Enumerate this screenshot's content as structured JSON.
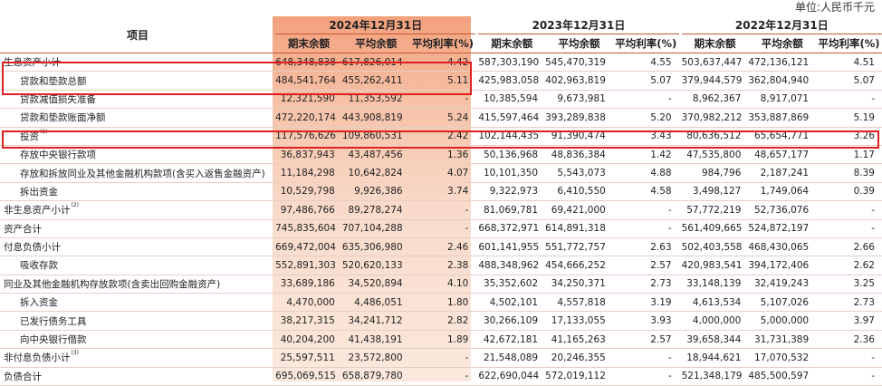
{
  "unit_note": "单位:人民币千元",
  "header": {
    "item_label": "项目",
    "years": [
      "2024年12月31日",
      "2023年12月31日",
      "2022年12月31日"
    ],
    "sub_columns": [
      "期末余额",
      "平均余额",
      "平均利率(%)"
    ]
  },
  "rows": [
    {
      "label": "生息资产小计",
      "sup": "",
      "v": [
        "648,348,838",
        "617,826,014",
        "4.42",
        "587,303,190",
        "545,470,319",
        "4.55",
        "503,637,447",
        "472,136,121",
        "4.51"
      ]
    },
    {
      "label": "贷款和垫款总额",
      "sup": "",
      "v": [
        "484,541,764",
        "455,262,411",
        "5.11",
        "425,983,058",
        "402,963,819",
        "5.07",
        "379,944,579",
        "362,804,940",
        "5.07"
      ]
    },
    {
      "label": "贷款减值损失准备",
      "sup": "",
      "v": [
        "12,321,590",
        "11,353,592",
        "-",
        "10,385,594",
        "9,673,981",
        "-",
        "8,962,367",
        "8,917,071",
        "-"
      ]
    },
    {
      "label": "贷款和垫款账面净额",
      "sup": "",
      "v": [
        "472,220,174",
        "443,908,819",
        "5.24",
        "415,597,464",
        "393,289,838",
        "5.20",
        "370,982,212",
        "353,887,869",
        "5.19"
      ]
    },
    {
      "label": "投资",
      "sup": "(1)",
      "v": [
        "117,576,626",
        "109,860,531",
        "2.42",
        "102,144,435",
        "91,390,474",
        "3.43",
        "80,636,512",
        "65,654,771",
        "3.26"
      ]
    },
    {
      "label": "存放中央银行款项",
      "sup": "",
      "v": [
        "36,837,943",
        "43,487,456",
        "1.36",
        "50,136,968",
        "48,836,384",
        "1.42",
        "47,535,800",
        "48,657,177",
        "1.17"
      ]
    },
    {
      "label": "存放和拆放同业及其他金融机构款项(含买入返售金融资产)",
      "sup": "",
      "v": [
        "11,184,298",
        "10,642,824",
        "4.07",
        "10,101,350",
        "5,543,073",
        "4.88",
        "984,796",
        "2,187,241",
        "8.39"
      ]
    },
    {
      "label": "拆出资金",
      "sup": "",
      "v": [
        "10,529,798",
        "9,926,386",
        "3.74",
        "9,322,973",
        "6,410,550",
        "4.58",
        "3,498,127",
        "1,749,064",
        "0.39"
      ]
    },
    {
      "label": "非生息资产小计",
      "sup": "(2)",
      "v": [
        "97,486,766",
        "89,278,274",
        "-",
        "81,069,781",
        "69,421,000",
        "-",
        "57,772,219",
        "52,736,076",
        "-"
      ]
    },
    {
      "label": "资产合计",
      "sup": "",
      "v": [
        "745,835,604",
        "707,104,288",
        "-",
        "668,372,971",
        "614,891,318",
        "-",
        "561,409,665",
        "524,872,197",
        "-"
      ]
    },
    {
      "label": "付息负债小计",
      "sup": "",
      "v": [
        "669,472,004",
        "635,306,980",
        "2.46",
        "601,141,955",
        "551,772,757",
        "2.63",
        "502,403,558",
        "468,430,065",
        "2.66"
      ]
    },
    {
      "label": "吸收存款",
      "sup": "",
      "v": [
        "552,891,303",
        "520,620,133",
        "2.38",
        "488,348,962",
        "454,666,252",
        "2.57",
        "420,983,541",
        "394,172,406",
        "2.62"
      ]
    },
    {
      "label": "同业及其他金融机构存放款项(含卖出回购金融资产)",
      "sup": "",
      "v": [
        "33,689,186",
        "34,520,894",
        "4.10",
        "35,352,602",
        "34,250,371",
        "2.73",
        "33,148,139",
        "32,419,243",
        "3.25"
      ]
    },
    {
      "label": "拆入资金",
      "sup": "",
      "v": [
        "4,470,000",
        "4,486,051",
        "1.80",
        "4,502,101",
        "4,557,818",
        "3.19",
        "4,613,534",
        "5,107,026",
        "2.73"
      ]
    },
    {
      "label": "已发行债务工具",
      "sup": "",
      "v": [
        "38,217,315",
        "34,241,712",
        "2.82",
        "30,266,109",
        "17,133,055",
        "3.93",
        "4,000,000",
        "5,000,000",
        "3.97"
      ]
    },
    {
      "label": "向中央银行借款",
      "sup": "",
      "v": [
        "40,204,200",
        "41,438,191",
        "1.89",
        "42,672,181",
        "41,165,263",
        "2.57",
        "39,658,344",
        "31,731,389",
        "2.36"
      ]
    },
    {
      "label": "非付息负债小计",
      "sup": "(3)",
      "v": [
        "25,597,511",
        "23,572,800",
        "-",
        "21,548,089",
        "20,246,355",
        "-",
        "18,944,621",
        "17,070,532",
        "-"
      ]
    },
    {
      "label": "负债合计",
      "sup": "",
      "v": [
        "695,069,515",
        "658,879,780",
        "-",
        "622,690,044",
        "572,019,112",
        "-",
        "521,348,179",
        "485,500,597",
        "-"
      ]
    }
  ],
  "indent": [
    0,
    1,
    1,
    1,
    1,
    1,
    1,
    1,
    0,
    0,
    0,
    1,
    0,
    1,
    1,
    1,
    0,
    0
  ],
  "colors": {
    "accent": "#c65a32",
    "highlight_box": "#e02020"
  }
}
